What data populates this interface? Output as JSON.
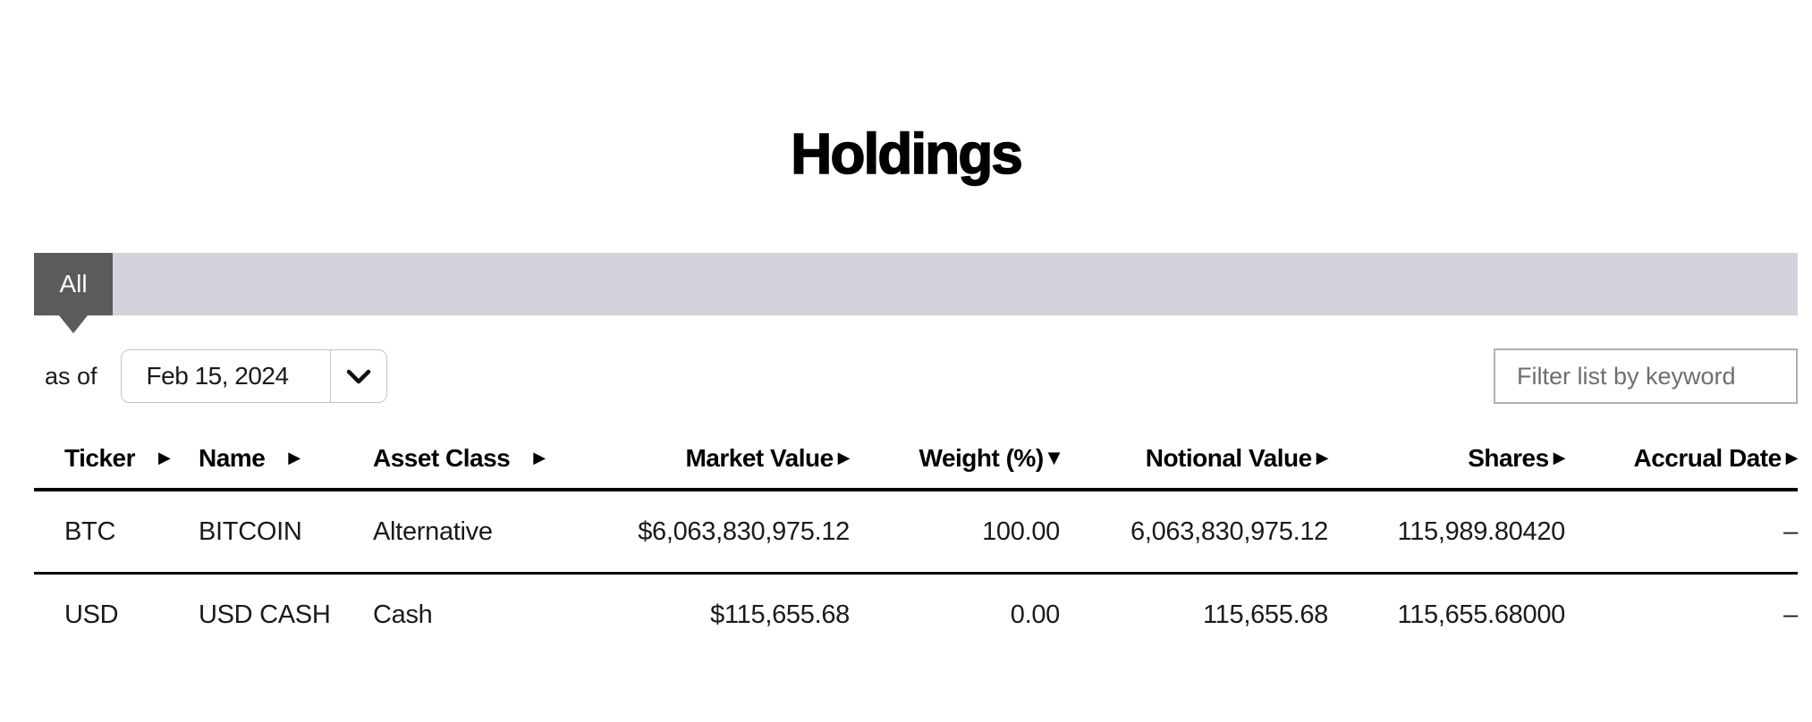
{
  "page": {
    "title": "Holdings"
  },
  "tabs": {
    "items": [
      {
        "label": "All",
        "active": true
      }
    ]
  },
  "controls": {
    "as_of_label": "as of",
    "date_select": {
      "value": "Feb 15, 2024",
      "icon": "chevron-down"
    },
    "filter_input": {
      "placeholder": "Filter list by keyword",
      "value": ""
    }
  },
  "table": {
    "columns": [
      {
        "label": "Ticker",
        "sort_icon": "right-triangle",
        "align": "left"
      },
      {
        "label": "Name",
        "sort_icon": "right-triangle",
        "align": "left"
      },
      {
        "label": "Asset Class",
        "sort_icon": "right-triangle",
        "align": "left"
      },
      {
        "label": "Market Value",
        "sort_icon": "right-triangle",
        "align": "right"
      },
      {
        "label": "Weight (%)",
        "sort_icon": "down-triangle",
        "align": "right"
      },
      {
        "label": "Notional Value",
        "sort_icon": "right-triangle",
        "align": "right"
      },
      {
        "label": "Shares",
        "sort_icon": "right-triangle",
        "align": "right"
      },
      {
        "label": "Accrual Date",
        "sort_icon": "right-triangle",
        "align": "right"
      }
    ],
    "rows": [
      [
        "BTC",
        "BITCOIN",
        "Alternative",
        "$6,063,830,975.12",
        "100.00",
        "6,063,830,975.12",
        "115,989.80420",
        "–"
      ],
      [
        "USD",
        "USD CASH",
        "Cash",
        "$115,655.68",
        "0.00",
        "115,655.68",
        "115,655.68000",
        "–"
      ]
    ]
  },
  "colors": {
    "tab_active_bg": "#5d5a5a",
    "tab_bar_bg": "#d4d3dc",
    "header_rule": "#000000",
    "placeholder_text": "#6e6e6e"
  }
}
